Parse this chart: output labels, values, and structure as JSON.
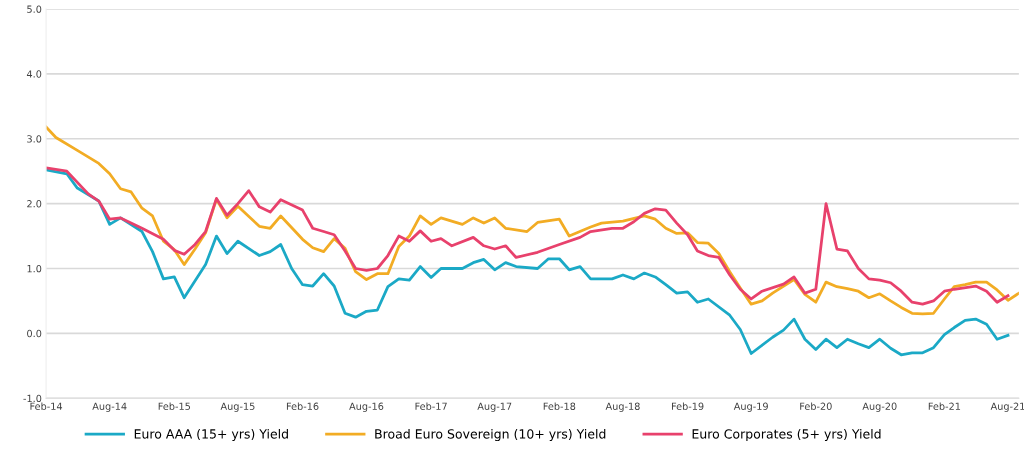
{
  "chart_data": {
    "type": "line",
    "xlim": [
      "2014-02",
      "2021-09"
    ],
    "xticks": [
      {
        "value": "2014-02",
        "label": "Feb-14"
      },
      {
        "value": "2014-08",
        "label": "Aug-14"
      },
      {
        "value": "2015-02",
        "label": "Feb-15"
      },
      {
        "value": "2015-08",
        "label": "Aug-15"
      },
      {
        "value": "2016-02",
        "label": "Feb-16"
      },
      {
        "value": "2016-08",
        "label": "Aug-16"
      },
      {
        "value": "2017-02",
        "label": "Feb-17"
      },
      {
        "value": "2017-08",
        "label": "Aug-17"
      },
      {
        "value": "2018-02",
        "label": "Feb-18"
      },
      {
        "value": "2018-08",
        "label": "Aug-18"
      },
      {
        "value": "2019-02",
        "label": "Feb-19"
      },
      {
        "value": "2019-08",
        "label": "Aug-19"
      },
      {
        "value": "2020-02",
        "label": "Feb-20"
      },
      {
        "value": "2020-08",
        "label": "Aug-20"
      },
      {
        "value": "2021-02",
        "label": "Feb-21"
      },
      {
        "value": "2021-08",
        "label": "Aug-21"
      }
    ],
    "ylim": [
      -1,
      5
    ],
    "yticks": [
      {
        "value": -1,
        "label": "-1.0"
      },
      {
        "value": 0,
        "label": "0.0"
      },
      {
        "value": 1,
        "label": "1.0"
      },
      {
        "value": 2,
        "label": "2.0"
      },
      {
        "value": 3,
        "label": "3.0"
      },
      {
        "value": 4,
        "label": "4.0"
      },
      {
        "value": 5,
        "label": "5.0"
      }
    ],
    "grid": "y",
    "legend": "bottom",
    "marker": "none",
    "line_style": "solid",
    "series": [
      {
        "name": "Euro AAA (15+ yrs) Yield",
        "color": "#1ba9c6",
        "x": [
          "2014-02",
          "2014-04",
          "2014-05",
          "2014-07",
          "2014-08",
          "2014-09",
          "2014-11",
          "2014-12",
          "2015-01",
          "2015-02",
          "2015-03",
          "2015-05",
          "2015-06",
          "2015-07",
          "2015-08",
          "2015-10",
          "2015-11",
          "2015-12",
          "2016-01",
          "2016-02",
          "2016-03",
          "2016-04",
          "2016-05",
          "2016-06",
          "2016-07",
          "2016-08",
          "2016-09",
          "2016-10",
          "2016-11",
          "2016-12",
          "2017-01",
          "2017-02",
          "2017-03",
          "2017-05",
          "2017-06",
          "2017-07",
          "2017-08",
          "2017-09",
          "2017-10",
          "2017-12",
          "2018-01",
          "2018-02",
          "2018-03",
          "2018-04",
          "2018-05",
          "2018-07",
          "2018-08",
          "2018-09",
          "2018-10",
          "2018-11",
          "2018-12",
          "2019-01",
          "2019-02",
          "2019-03",
          "2019-04",
          "2019-06",
          "2019-07",
          "2019-08",
          "2019-10",
          "2019-11",
          "2019-12",
          "2020-01",
          "2020-02",
          "2020-03",
          "2020-04",
          "2020-05",
          "2020-06",
          "2020-07",
          "2020-08",
          "2020-09",
          "2020-10",
          "2020-11",
          "2020-12",
          "2021-01",
          "2021-02",
          "2021-03",
          "2021-04",
          "2021-05",
          "2021-06",
          "2021-07",
          "2021-08"
        ],
        "values": [
          2.52,
          2.46,
          2.24,
          2.04,
          1.68,
          1.78,
          1.57,
          1.26,
          0.84,
          0.87,
          0.55,
          1.06,
          1.5,
          1.23,
          1.42,
          1.2,
          1.26,
          1.37,
          1.0,
          0.75,
          0.73,
          0.92,
          0.73,
          0.31,
          0.25,
          0.34,
          0.36,
          0.72,
          0.84,
          0.82,
          1.03,
          0.86,
          1.0,
          1.0,
          1.09,
          1.14,
          0.98,
          1.09,
          1.03,
          1.0,
          1.15,
          1.15,
          0.98,
          1.03,
          0.84,
          0.84,
          0.9,
          0.84,
          0.93,
          0.87,
          0.75,
          0.62,
          0.64,
          0.48,
          0.53,
          0.28,
          0.06,
          -0.31,
          -0.06,
          0.05,
          0.22,
          -0.09,
          -0.25,
          -0.09,
          -0.22,
          -0.09,
          -0.16,
          -0.22,
          -0.09,
          -0.23,
          -0.33,
          -0.3,
          -0.3,
          -0.22,
          -0.02,
          0.09,
          0.2,
          0.22,
          0.14,
          -0.09,
          -0.03
        ]
      },
      {
        "name": "Broad Euro Sovereign (10+ yrs) Yield",
        "color": "#f2ac24",
        "x": [
          "2014-02",
          "2014-03",
          "2014-05",
          "2014-07",
          "2014-08",
          "2014-09",
          "2014-10",
          "2014-11",
          "2014-12",
          "2015-01",
          "2015-02",
          "2015-03",
          "2015-04",
          "2015-05",
          "2015-06",
          "2015-07",
          "2015-08",
          "2015-10",
          "2015-11",
          "2015-12",
          "2016-02",
          "2016-03",
          "2016-04",
          "2016-05",
          "2016-06",
          "2016-07",
          "2016-08",
          "2016-09",
          "2016-10",
          "2016-11",
          "2016-12",
          "2017-01",
          "2017-02",
          "2017-03",
          "2017-05",
          "2017-06",
          "2017-07",
          "2017-08",
          "2017-09",
          "2017-11",
          "2017-12",
          "2018-02",
          "2018-03",
          "2018-05",
          "2018-06",
          "2018-08",
          "2018-10",
          "2018-11",
          "2018-12",
          "2019-01",
          "2019-02",
          "2019-03",
          "2019-04",
          "2019-05",
          "2019-06",
          "2019-07",
          "2019-08",
          "2019-09",
          "2019-10",
          "2019-12",
          "2020-01",
          "2020-02",
          "2020-03",
          "2020-04",
          "2020-05",
          "2020-06",
          "2020-07",
          "2020-08",
          "2020-09",
          "2020-10",
          "2020-11",
          "2020-12",
          "2021-01",
          "2021-02",
          "2021-03",
          "2021-04",
          "2021-05",
          "2021-06",
          "2021-07",
          "2021-08",
          "2021-09"
        ],
        "values": [
          3.18,
          3.02,
          2.82,
          2.62,
          2.46,
          2.23,
          2.18,
          1.93,
          1.81,
          1.42,
          1.29,
          1.06,
          1.3,
          1.55,
          2.07,
          1.78,
          1.96,
          1.65,
          1.62,
          1.81,
          1.45,
          1.32,
          1.26,
          1.46,
          1.31,
          0.95,
          0.83,
          0.92,
          0.92,
          1.34,
          1.5,
          1.81,
          1.68,
          1.78,
          1.68,
          1.78,
          1.7,
          1.78,
          1.62,
          1.57,
          1.71,
          1.76,
          1.5,
          1.64,
          1.7,
          1.73,
          1.81,
          1.76,
          1.62,
          1.54,
          1.55,
          1.4,
          1.39,
          1.23,
          0.95,
          0.7,
          0.45,
          0.5,
          0.62,
          0.83,
          0.6,
          0.48,
          0.79,
          0.72,
          0.69,
          0.65,
          0.55,
          0.61,
          0.5,
          0.4,
          0.31,
          0.3,
          0.31,
          0.53,
          0.72,
          0.75,
          0.79,
          0.79,
          0.67,
          0.51,
          0.62
        ]
      },
      {
        "name": "Euro Corporates (5+ yrs) Yield",
        "color": "#e8416c",
        "x": [
          "2014-02",
          "2014-04",
          "2014-06",
          "2014-07",
          "2014-08",
          "2014-09",
          "2014-11",
          "2015-01",
          "2015-02",
          "2015-03",
          "2015-04",
          "2015-05",
          "2015-06",
          "2015-07",
          "2015-08",
          "2015-09",
          "2015-10",
          "2015-11",
          "2015-12",
          "2016-02",
          "2016-03",
          "2016-04",
          "2016-05",
          "2016-06",
          "2016-07",
          "2016-08",
          "2016-09",
          "2016-10",
          "2016-11",
          "2016-12",
          "2017-01",
          "2017-02",
          "2017-03",
          "2017-04",
          "2017-06",
          "2017-07",
          "2017-08",
          "2017-09",
          "2017-10",
          "2017-12",
          "2018-02",
          "2018-04",
          "2018-05",
          "2018-07",
          "2018-08",
          "2018-09",
          "2018-10",
          "2018-11",
          "2018-12",
          "2019-01",
          "2019-02",
          "2019-03",
          "2019-04",
          "2019-05",
          "2019-06",
          "2019-07",
          "2019-08",
          "2019-09",
          "2019-11",
          "2019-12",
          "2020-01",
          "2020-02",
          "2020-03",
          "2020-04",
          "2020-05",
          "2020-06",
          "2020-07",
          "2020-08",
          "2020-09",
          "2020-10",
          "2020-11",
          "2020-12",
          "2021-01",
          "2021-02",
          "2021-03",
          "2021-05",
          "2021-06",
          "2021-07",
          "2021-08"
        ],
        "values": [
          2.55,
          2.5,
          2.15,
          2.04,
          1.76,
          1.78,
          1.62,
          1.45,
          1.28,
          1.22,
          1.37,
          1.57,
          2.08,
          1.82,
          2.0,
          2.2,
          1.95,
          1.87,
          2.06,
          1.9,
          1.62,
          1.57,
          1.52,
          1.27,
          1.0,
          0.97,
          1.0,
          1.2,
          1.5,
          1.42,
          1.58,
          1.42,
          1.46,
          1.35,
          1.48,
          1.35,
          1.3,
          1.35,
          1.17,
          1.25,
          1.37,
          1.48,
          1.57,
          1.62,
          1.62,
          1.72,
          1.85,
          1.92,
          1.9,
          1.7,
          1.52,
          1.27,
          1.2,
          1.17,
          0.9,
          0.68,
          0.53,
          0.65,
          0.76,
          0.87,
          0.62,
          0.68,
          2.0,
          1.3,
          1.27,
          1.0,
          0.84,
          0.82,
          0.78,
          0.65,
          0.48,
          0.45,
          0.5,
          0.65,
          0.68,
          0.73,
          0.65,
          0.48,
          0.58
        ]
      }
    ]
  }
}
